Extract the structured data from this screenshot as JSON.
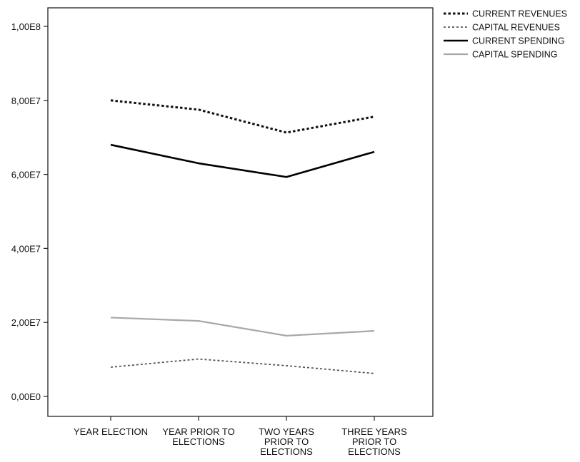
{
  "chart_data": {
    "type": "line",
    "title": "",
    "xlabel": "",
    "ylabel": "",
    "categories": [
      [
        "YEAR ELECTION"
      ],
      [
        "YEAR PRIOR TO",
        "ELECTIONS"
      ],
      [
        "TWO YEARS",
        "PRIOR TO",
        "ELECTIONS"
      ],
      [
        "THREE YEARS",
        "PRIOR TO",
        "ELECTIONS"
      ]
    ],
    "ylim": [
      0,
      100000000
    ],
    "yticks": [
      {
        "value": 0,
        "label": "0,00E0"
      },
      {
        "value": 20000000,
        "label": "2,00E7"
      },
      {
        "value": 40000000,
        "label": "4,00E7"
      },
      {
        "value": 60000000,
        "label": "6,00E7"
      },
      {
        "value": 80000000,
        "label": "8,00E7"
      },
      {
        "value": 100000000,
        "label": "1,00E8"
      }
    ],
    "grid": false,
    "legend_position": "top-right",
    "series": [
      {
        "name": "CURRENT REVENUES",
        "values": [
          80000000,
          77500000,
          71300000,
          75600000
        ],
        "color": "#111111",
        "style": "dotted-bold"
      },
      {
        "name": "CAPITAL REVENUES",
        "values": [
          7900000,
          10100000,
          8300000,
          6200000
        ],
        "color": "#555555",
        "style": "dotted"
      },
      {
        "name": "CURRENT SPENDING",
        "values": [
          68000000,
          63000000,
          59300000,
          66100000
        ],
        "color": "#000000",
        "style": "solid-bold"
      },
      {
        "name": "CAPITAL SPENDING",
        "values": [
          21300000,
          20400000,
          16400000,
          17700000
        ],
        "color": "#a8a8a8",
        "style": "solid"
      }
    ]
  }
}
